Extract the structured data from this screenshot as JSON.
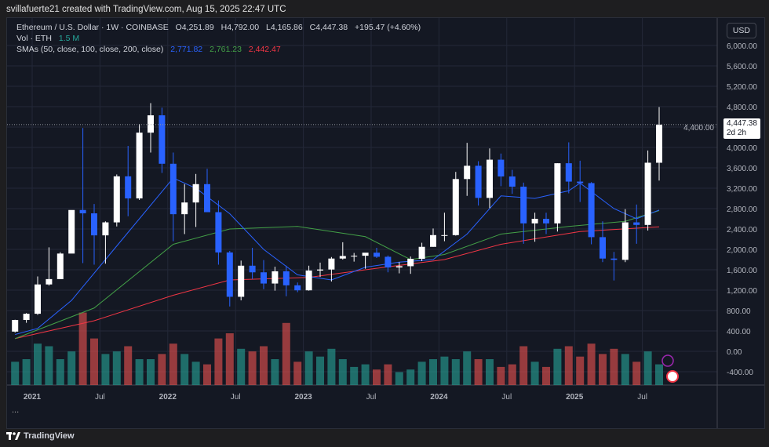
{
  "credit": "svillafuerte21 created with TradingView.com, Aug 15, 2025 22:47 UTC",
  "legend": {
    "symbol": "Ethereum / U.S. Dollar · 1W · COINBASE",
    "open": "O4,251.89",
    "high": "H4,792.00",
    "low": "L4,165.86",
    "close": "C4,447.38",
    "change": "+195.47 (+4.60%)",
    "vol_label": "Vol · ETH",
    "vol_value": "1.5 M",
    "sma_label": "SMAs (50, close, 100, close, 200, close)",
    "sma50": "2,771.82",
    "sma100": "2,761.23",
    "sma200": "2,442.47"
  },
  "currency_button": "USD",
  "price_tag": {
    "price": "4,447.38",
    "countdown": "2d 2h"
  },
  "more_label": "...",
  "footer": {
    "brand": "TradingView"
  },
  "colors": {
    "up": "#ffffff",
    "down": "#2962ff",
    "sma50": "#2962ff",
    "sma100": "#43a047",
    "sma200": "#f23645",
    "vol_up": "#26a69a",
    "vol_down": "#ef5350",
    "bg": "#141823"
  },
  "chart_data": {
    "type": "candlestick",
    "interval": "1W (approximated monthly)",
    "y_ticks": [
      "6,000.00",
      "5,600.00",
      "5,200.00",
      "4,800.00",
      "4,400.00",
      "4,000.00",
      "3,600.00",
      "3,200.00",
      "2,800.00",
      "2,400.00",
      "2,000.00",
      "1,600.00",
      "1,200.00",
      "800.00",
      "400.00",
      "0.00",
      "-400.00"
    ],
    "y_tick_values": [
      6000,
      5600,
      5200,
      4800,
      4400,
      4000,
      3600,
      3200,
      2800,
      2400,
      2000,
      1600,
      1200,
      800,
      400,
      0,
      -400
    ],
    "x_ticks": [
      "2021",
      "Jul",
      "2022",
      "Jul",
      "2023",
      "Jul",
      "2024",
      "Jul",
      "2025",
      "Jul"
    ],
    "x_tick_dates": [
      "2021-01",
      "2021-07",
      "2022-01",
      "2022-07",
      "2023-01",
      "2023-07",
      "2024-01",
      "2024-07",
      "2025-01",
      "2025-07"
    ],
    "candles": [
      [
        "2020-11",
        387,
        620,
        370,
        615,
        9
      ],
      [
        "2020-12",
        615,
        750,
        560,
        737,
        10
      ],
      [
        "2021-01",
        737,
        1470,
        715,
        1312,
        16
      ],
      [
        "2021-02",
        1312,
        2040,
        1290,
        1417,
        15
      ],
      [
        "2021-03",
        1417,
        1945,
        1440,
        1918,
        10
      ],
      [
        "2021-04",
        1918,
        2750,
        1930,
        2773,
        13
      ],
      [
        "2021-05",
        2773,
        4380,
        1730,
        2707,
        28
      ],
      [
        "2021-06",
        2707,
        2890,
        1700,
        2275,
        18
      ],
      [
        "2021-07",
        2275,
        2550,
        1720,
        2530,
        12
      ],
      [
        "2021-08",
        2530,
        3470,
        2450,
        3433,
        13
      ],
      [
        "2021-09",
        3433,
        4030,
        2650,
        3000,
        15
      ],
      [
        "2021-10",
        3000,
        4460,
        2970,
        4290,
        10
      ],
      [
        "2021-11",
        4290,
        4870,
        3900,
        4630,
        10
      ],
      [
        "2021-12",
        4630,
        4780,
        3500,
        3680,
        12
      ],
      [
        "2022-01",
        3680,
        3900,
        2160,
        2690,
        16
      ],
      [
        "2022-02",
        2690,
        3280,
        2300,
        2920,
        12
      ],
      [
        "2022-03",
        2920,
        3480,
        2440,
        3280,
        9
      ],
      [
        "2022-04",
        3280,
        3580,
        2760,
        2730,
        8
      ],
      [
        "2022-05",
        2730,
        2960,
        1700,
        1940,
        18
      ],
      [
        "2022-06",
        1940,
        1970,
        880,
        1070,
        20
      ],
      [
        "2022-07",
        1070,
        1780,
        1000,
        1680,
        14
      ],
      [
        "2022-08",
        1680,
        2030,
        1420,
        1550,
        13
      ],
      [
        "2022-09",
        1550,
        1790,
        1220,
        1330,
        15
      ],
      [
        "2022-10",
        1330,
        1660,
        1190,
        1570,
        10
      ],
      [
        "2022-11",
        1570,
        1680,
        1080,
        1295,
        24
      ],
      [
        "2022-12",
        1295,
        1350,
        1160,
        1197,
        9
      ],
      [
        "2023-01",
        1197,
        1680,
        1190,
        1585,
        13
      ],
      [
        "2023-02",
        1585,
        1740,
        1460,
        1605,
        11
      ],
      [
        "2023-03",
        1605,
        1850,
        1370,
        1820,
        14
      ],
      [
        "2023-04",
        1820,
        2140,
        1800,
        1870,
        10
      ],
      [
        "2023-05",
        1870,
        1930,
        1760,
        1875,
        7
      ],
      [
        "2023-06",
        1875,
        1930,
        1620,
        1935,
        8
      ],
      [
        "2023-07",
        1935,
        2030,
        1830,
        1855,
        6
      ],
      [
        "2023-08",
        1855,
        1880,
        1550,
        1645,
        8
      ],
      [
        "2023-09",
        1645,
        1750,
        1530,
        1670,
        5
      ],
      [
        "2023-10",
        1670,
        1860,
        1520,
        1815,
        6
      ],
      [
        "2023-11",
        1815,
        2130,
        1770,
        2050,
        9
      ],
      [
        "2023-12",
        2050,
        2410,
        2050,
        2280,
        10
      ],
      [
        "2024-01",
        2280,
        2720,
        2160,
        2280,
        11
      ],
      [
        "2024-02",
        2280,
        3520,
        2270,
        3380,
        10
      ],
      [
        "2024-03",
        3380,
        4090,
        3050,
        3640,
        13
      ],
      [
        "2024-04",
        3640,
        3730,
        2860,
        3010,
        10
      ],
      [
        "2024-05",
        3010,
        3980,
        2810,
        3760,
        10
      ],
      [
        "2024-06",
        3760,
        3880,
        3240,
        3430,
        7
      ],
      [
        "2024-07",
        3430,
        3560,
        3090,
        3230,
        8
      ],
      [
        "2024-08",
        3230,
        3310,
        2110,
        2510,
        15
      ],
      [
        "2024-09",
        2510,
        2720,
        2150,
        2600,
        9
      ],
      [
        "2024-10",
        2600,
        2720,
        2300,
        2510,
        7
      ],
      [
        "2024-11",
        2510,
        3690,
        2350,
        3690,
        14
      ],
      [
        "2024-12",
        3690,
        4100,
        3100,
        3330,
        15
      ],
      [
        "2025-01",
        3330,
        3740,
        2930,
        3300,
        11
      ],
      [
        "2025-02",
        3300,
        3320,
        2100,
        2240,
        16
      ],
      [
        "2025-03",
        2240,
        2550,
        1750,
        1820,
        12
      ],
      [
        "2025-04",
        1820,
        1950,
        1390,
        1795,
        14
      ],
      [
        "2025-05",
        1795,
        2790,
        1750,
        2530,
        12
      ],
      [
        "2025-06",
        2530,
        2880,
        2110,
        2480,
        9
      ],
      [
        "2025-07",
        2480,
        3940,
        2370,
        3700,
        13
      ],
      [
        "2025-08",
        3700,
        4792,
        3350,
        4447,
        8
      ]
    ],
    "candle_fields": [
      "date",
      "open",
      "high",
      "low",
      "close",
      "volume_relative"
    ],
    "sma50": [
      [
        "2020-11",
        330
      ],
      [
        "2021-01",
        450
      ],
      [
        "2021-04",
        1000
      ],
      [
        "2021-07",
        1800
      ],
      [
        "2021-10",
        2600
      ],
      [
        "2022-01",
        3400
      ],
      [
        "2022-03",
        3200
      ],
      [
        "2022-06",
        2700
      ],
      [
        "2022-09",
        2000
      ],
      [
        "2022-12",
        1500
      ],
      [
        "2023-03",
        1400
      ],
      [
        "2023-06",
        1650
      ],
      [
        "2023-09",
        1750
      ],
      [
        "2023-12",
        1800
      ],
      [
        "2024-03",
        2300
      ],
      [
        "2024-06",
        3050
      ],
      [
        "2024-09",
        3000
      ],
      [
        "2024-12",
        3150
      ],
      [
        "2025-01",
        3300
      ],
      [
        "2025-04",
        2800
      ],
      [
        "2025-06",
        2600
      ],
      [
        "2025-08",
        2772
      ]
    ],
    "sma100": [
      [
        "2020-11",
        250
      ],
      [
        "2021-06",
        850
      ],
      [
        "2022-01",
        2100
      ],
      [
        "2022-06",
        2400
      ],
      [
        "2022-12",
        2450
      ],
      [
        "2023-06",
        2250
      ],
      [
        "2023-10",
        1800
      ],
      [
        "2024-01",
        1900
      ],
      [
        "2024-06",
        2300
      ],
      [
        "2024-12",
        2450
      ],
      [
        "2025-05",
        2550
      ],
      [
        "2025-08",
        2761
      ]
    ],
    "sma200": [
      [
        "2020-11",
        250
      ],
      [
        "2021-06",
        600
      ],
      [
        "2022-01",
        1100
      ],
      [
        "2022-06",
        1400
      ],
      [
        "2023-01",
        1450
      ],
      [
        "2023-06",
        1600
      ],
      [
        "2024-01",
        1800
      ],
      [
        "2024-06",
        2100
      ],
      [
        "2025-01",
        2350
      ],
      [
        "2025-08",
        2442
      ]
    ],
    "last_price": 4447.38
  }
}
